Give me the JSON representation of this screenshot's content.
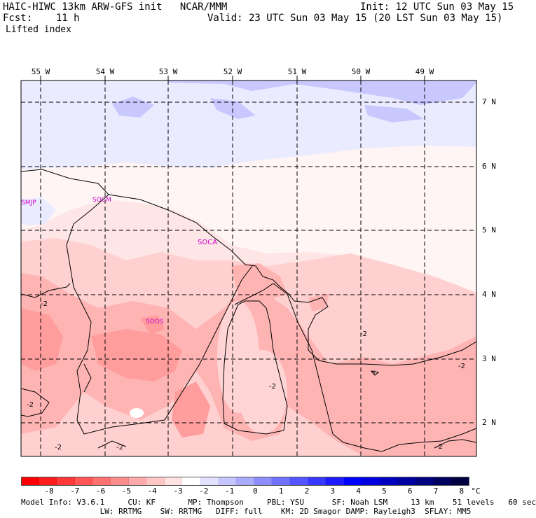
{
  "header": {
    "line1_left": "HAIC-HIWC 13km ARW-GFS init   NCAR/MMM",
    "line1_right": "Init: 12 UTC Sun 03 May 15",
    "line2_left": "Fcst:    11 h",
    "line2_right": "Valid: 23 UTC Sun 03 May 15 (20 LST Sun 03 May 15)",
    "line3_left": "Lifted index"
  },
  "map": {
    "lon_labels": [
      "55 W",
      "54 W",
      "53 W",
      "52 W",
      "51 W",
      "50 W",
      "49 W"
    ],
    "lat_labels": [
      "7 N",
      "6 N",
      "5 N",
      "4 N",
      "3 N",
      "2 N"
    ],
    "stations": [
      {
        "id": "SMJP"
      },
      {
        "id": "SOCM"
      },
      {
        "id": "SOCA"
      },
      {
        "id": "SOOS"
      }
    ],
    "contour_labels": [
      "-2",
      "-2",
      "-2",
      "-2",
      "-2",
      "-2",
      "-2",
      "-2",
      "-2"
    ]
  },
  "colorbar": {
    "ticks": [
      "-8",
      "-7",
      "-6",
      "-5",
      "-4",
      "-3",
      "-2",
      "-1",
      "0",
      "1",
      "2",
      "3",
      "4",
      "5",
      "6",
      "7",
      "8"
    ],
    "unit": "°C",
    "colors": [
      "#ff0000",
      "#ff1c1c",
      "#ff3838",
      "#ff5555",
      "#ff7171",
      "#ff8d8d",
      "#ffaaaa",
      "#ffc6c6",
      "#ffe2e2",
      "#ffffff",
      "#e2e2ff",
      "#c6c6ff",
      "#aaaaff",
      "#8d8dff",
      "#7171ff",
      "#5555ff",
      "#3838ff",
      "#1c1cff",
      "#0000ff",
      "#0000e0",
      "#0000c0",
      "#0000a0",
      "#000080",
      "#000060",
      "#000040"
    ]
  },
  "footer": {
    "line1": "Model Info: V3.6.1     CU: KF       MP: Thompson     PBL: YSU      SF: Noah LSM     13 km    51 levels   60 sec",
    "line2": "                 LW: RRTMG    SW: RRTMG   DIFF: full    KM: 2D Smagor DAMP: Rayleigh3  SFLAY: MM5"
  }
}
